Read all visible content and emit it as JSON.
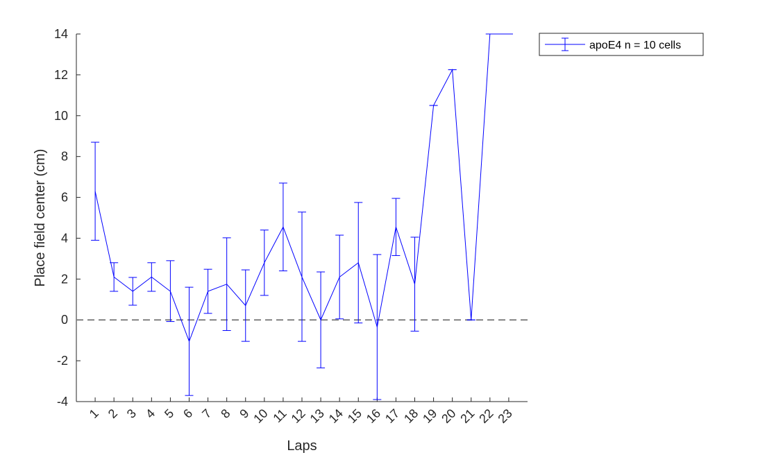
{
  "chart_data": {
    "type": "line",
    "xlabel": "Laps",
    "ylabel": "Place field center (cm)",
    "xlim": [
      0,
      24
    ],
    "ylim": [
      -4,
      14
    ],
    "x_ticks": [
      1,
      2,
      3,
      4,
      5,
      6,
      7,
      8,
      9,
      10,
      11,
      12,
      13,
      14,
      15,
      16,
      17,
      18,
      19,
      20,
      21,
      22,
      23
    ],
    "x_tick_labels": [
      "1",
      "2",
      "3",
      "4",
      "5",
      "6",
      "7",
      "8",
      "9",
      "10",
      "11",
      "12",
      "13",
      "14",
      "15",
      "16",
      "17",
      "18",
      "19",
      "20",
      "21",
      "22",
      "23"
    ],
    "y_ticks": [
      -4,
      -2,
      0,
      2,
      4,
      6,
      8,
      10,
      12,
      14
    ],
    "y_tick_labels": [
      "-4",
      "-2",
      "0",
      "2",
      "4",
      "6",
      "8",
      "10",
      "12",
      "14"
    ],
    "reference_line": {
      "y": 0,
      "style": "dashed",
      "color": "#808080"
    },
    "grid": false,
    "legend_position": "outside-top-right",
    "series": [
      {
        "name": "apoE4 n = 10 cells",
        "color": "#0000ff",
        "error_bars": true,
        "x": [
          1,
          2,
          3,
          4,
          5,
          6,
          7,
          8,
          9,
          10,
          11,
          12,
          13,
          14,
          15,
          16,
          17,
          18,
          19,
          20,
          21,
          22,
          23
        ],
        "y": [
          6.3,
          2.1,
          1.4,
          2.1,
          1.4,
          -1.05,
          1.4,
          1.75,
          0.7,
          2.8,
          4.55,
          2.1,
          0.0,
          2.1,
          2.8,
          -0.35,
          4.55,
          1.75,
          10.5,
          12.25,
          0.0,
          14.0,
          14.0
        ],
        "lower": [
          3.9,
          1.4,
          0.72,
          1.4,
          -0.08,
          -3.7,
          0.32,
          -0.52,
          -1.05,
          1.2,
          2.4,
          -1.05,
          -2.35,
          0.05,
          -0.15,
          -3.9,
          3.15,
          -0.55,
          10.5,
          12.25,
          0.0,
          14.0,
          14.0
        ],
        "upper": [
          8.7,
          2.8,
          2.08,
          2.8,
          2.9,
          1.6,
          2.48,
          4.02,
          2.45,
          4.4,
          6.7,
          5.28,
          2.35,
          4.15,
          5.75,
          3.2,
          5.95,
          4.05,
          10.5,
          12.25,
          0.0,
          14.0,
          14.0
        ]
      }
    ]
  }
}
